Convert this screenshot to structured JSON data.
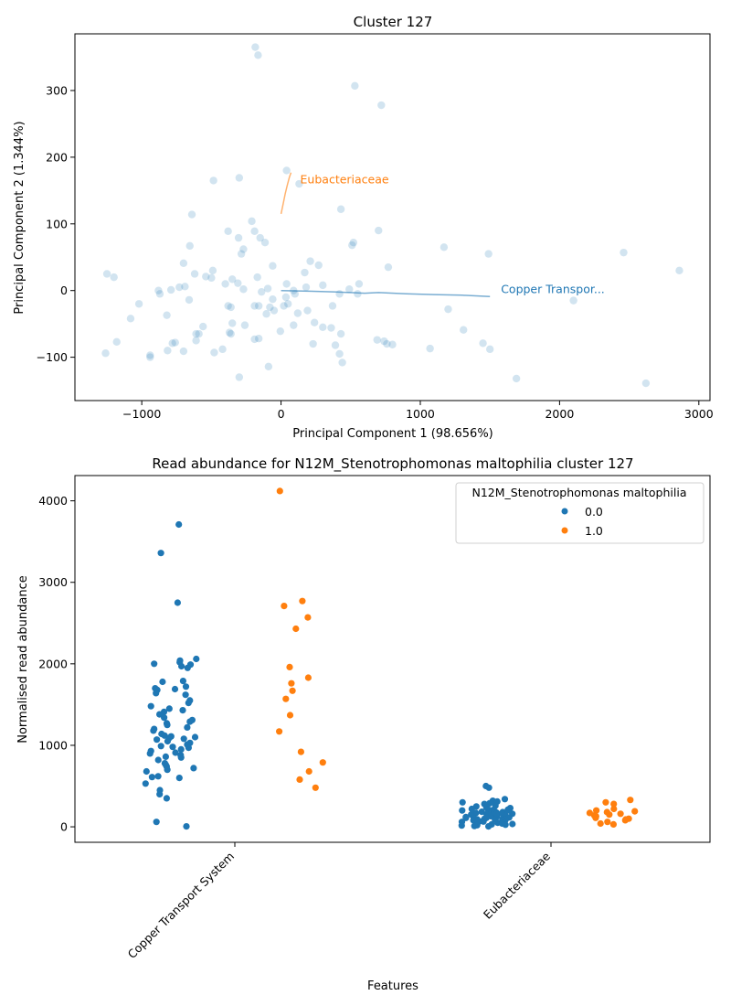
{
  "chart_data": [
    {
      "type": "scatter",
      "title": "Cluster 127",
      "xlabel": "Principal Component 1 (98.656%)",
      "ylabel": "Principal Component 2 (1.344%)",
      "xlim": [
        -1480,
        3080
      ],
      "ylim": [
        -165,
        385
      ],
      "xticks": [
        -1000,
        0,
        1000,
        2000,
        3000
      ],
      "yticks": [
        -100,
        0,
        100,
        200,
        300
      ],
      "point_color": "#1f77b4",
      "points": [
        [
          -185,
          365
        ],
        [
          -165,
          353
        ],
        [
          530,
          307
        ],
        [
          720,
          278
        ],
        [
          -485,
          165
        ],
        [
          -300,
          169
        ],
        [
          130,
          160
        ],
        [
          40,
          180
        ],
        [
          430,
          122
        ],
        [
          -640,
          114
        ],
        [
          -210,
          104
        ],
        [
          -270,
          62
        ],
        [
          -285,
          55
        ],
        [
          -380,
          89
        ],
        [
          -190,
          89
        ],
        [
          -305,
          79
        ],
        [
          -150,
          79
        ],
        [
          -115,
          72
        ],
        [
          -655,
          67
        ],
        [
          700,
          90
        ],
        [
          520,
          72
        ],
        [
          510,
          68
        ],
        [
          1170,
          65
        ],
        [
          2460,
          57
        ],
        [
          1490,
          55
        ],
        [
          -700,
          41
        ],
        [
          -730,
          5
        ],
        [
          -690,
          6
        ],
        [
          -490,
          30
        ],
        [
          -620,
          25
        ],
        [
          -540,
          21
        ],
        [
          -500,
          19
        ],
        [
          -60,
          37
        ],
        [
          210,
          44
        ],
        [
          270,
          38
        ],
        [
          770,
          35
        ],
        [
          -1250,
          25
        ],
        [
          -1200,
          20
        ],
        [
          -880,
          0
        ],
        [
          -870,
          -5
        ],
        [
          -790,
          1
        ],
        [
          -1020,
          -20
        ],
        [
          2860,
          30
        ],
        [
          -400,
          10
        ],
        [
          -350,
          17
        ],
        [
          -310,
          11
        ],
        [
          -270,
          2
        ],
        [
          -170,
          20
        ],
        [
          -140,
          -2
        ],
        [
          -95,
          3
        ],
        [
          40,
          10
        ],
        [
          90,
          0
        ],
        [
          180,
          5
        ],
        [
          170,
          27
        ],
        [
          300,
          8
        ],
        [
          420,
          -5
        ],
        [
          490,
          2
        ],
        [
          560,
          10
        ],
        [
          550,
          -5
        ],
        [
          100,
          -5
        ],
        [
          -300,
          -130
        ],
        [
          -380,
          -23
        ],
        [
          -360,
          -25
        ],
        [
          -160,
          -23
        ],
        [
          -190,
          -23
        ],
        [
          -60,
          -13
        ],
        [
          -50,
          -30
        ],
        [
          -80,
          -25
        ],
        [
          -105,
          -35
        ],
        [
          35,
          -10
        ],
        [
          50,
          -20
        ],
        [
          20,
          -23
        ],
        [
          120,
          -34
        ],
        [
          190,
          -30
        ],
        [
          370,
          -23
        ],
        [
          1200,
          -28
        ],
        [
          2100,
          -15
        ],
        [
          -820,
          -37
        ],
        [
          -660,
          -14
        ],
        [
          -1080,
          -42
        ],
        [
          -1180,
          -77
        ],
        [
          -1260,
          -94
        ],
        [
          -940,
          -97
        ],
        [
          -940,
          -100
        ],
        [
          -815,
          -90
        ],
        [
          -780,
          -79
        ],
        [
          -760,
          -78
        ],
        [
          -700,
          -91
        ],
        [
          -610,
          -65
        ],
        [
          -590,
          -65
        ],
        [
          -610,
          -75
        ],
        [
          -560,
          -54
        ],
        [
          -480,
          -93
        ],
        [
          -420,
          -88
        ],
        [
          -350,
          -49
        ],
        [
          -360,
          -65
        ],
        [
          -370,
          -63
        ],
        [
          -260,
          -52
        ],
        [
          -190,
          -73
        ],
        [
          -160,
          -72
        ],
        [
          -5,
          -61
        ],
        [
          90,
          -52
        ],
        [
          240,
          -48
        ],
        [
          300,
          -55
        ],
        [
          360,
          -56
        ],
        [
          230,
          -80
        ],
        [
          390,
          -82
        ],
        [
          420,
          -95
        ],
        [
          430,
          -65
        ],
        [
          440,
          -108
        ],
        [
          -90,
          -114
        ],
        [
          690,
          -74
        ],
        [
          740,
          -76
        ],
        [
          760,
          -80
        ],
        [
          800,
          -81
        ],
        [
          1070,
          -87
        ],
        [
          1310,
          -59
        ],
        [
          1450,
          -79
        ],
        [
          1500,
          -88
        ],
        [
          1690,
          -132
        ],
        [
          2620,
          -139
        ]
      ],
      "loadings": [
        {
          "label": "Eubacteriaceae",
          "color": "#ff7f0e",
          "path": [
            [
              0,
              115
            ],
            [
              15,
              130
            ],
            [
              30,
              145
            ],
            [
              45,
              158
            ],
            [
              60,
              170
            ],
            [
              72,
              177
            ]
          ]
        },
        {
          "label": "Copper Transpor...",
          "color": "#1f77b4",
          "path": [
            [
              0,
              0
            ],
            [
              200,
              -1
            ],
            [
              400,
              -2
            ],
            [
              600,
              -4
            ],
            [
              700,
              -3
            ],
            [
              900,
              -5
            ],
            [
              1100,
              -6
            ],
            [
              1300,
              -7
            ],
            [
              1500,
              -9
            ]
          ]
        }
      ]
    },
    {
      "type": "strip",
      "title": "Read abundance for N12M_Stenotrophomonas maltophilia cluster 127",
      "xlabel": "Features",
      "ylabel": "Normalised read abundance",
      "ylim": [
        -190,
        4310
      ],
      "yticks": [
        0,
        1000,
        2000,
        3000,
        4000
      ],
      "categories": [
        "Copper Transport System",
        "Eubacteriaceae"
      ],
      "legend_title": "N12M_Stenotrophomonas maltophilia",
      "series": [
        {
          "name": "0.0",
          "color": "#1f77b4",
          "values": [
            [
              3710,
              3360,
              2750,
              2060,
              2040,
              2020,
              2000,
              1990,
              1970,
              1950,
              1790,
              1780,
              1720,
              1700,
              1690,
              1680,
              1640,
              1620,
              1550,
              1520,
              1480,
              1450,
              1430,
              1410,
              1380,
              1340,
              1310,
              1290,
              1270,
              1250,
              1220,
              1200,
              1180,
              1140,
              1120,
              1110,
              1100,
              1090,
              1080,
              1070,
              1050,
              1030,
              1010,
              990,
              980,
              970,
              950,
              930,
              910,
              900,
              880,
              860,
              850,
              820,
              780,
              760,
              740,
              720,
              700,
              680,
              620,
              610,
              600,
              530,
              450,
              400,
              350,
              60,
              5
            ],
            [
              500,
              480,
              340,
              320,
              310,
              300,
              290,
              280,
              270,
              260,
              250,
              240,
              230,
              220,
              215,
              210,
              205,
              200,
              195,
              190,
              185,
              180,
              175,
              170,
              165,
              160,
              155,
              150,
              145,
              140,
              135,
              130,
              125,
              120,
              115,
              110,
              105,
              100,
              95,
              90,
              85,
              80,
              75,
              70,
              65,
              60,
              55,
              50,
              45,
              40,
              35,
              30,
              25,
              20,
              15,
              10,
              5,
              170,
              130,
              150,
              110,
              90,
              200,
              160
            ]
          ]
        },
        {
          "name": "1.0",
          "color": "#ff7f0e",
          "values": [
            [
              4120,
              2770,
              2710,
              2570,
              2430,
              1960,
              1830,
              1760,
              1670,
              1570,
              1370,
              1170,
              920,
              790,
              680,
              580,
              480
            ],
            [
              330,
              300,
              280,
              220,
              200,
              190,
              180,
              170,
              160,
              150,
              140,
              130,
              120,
              110,
              100,
              90,
              80,
              60,
              40,
              30
            ]
          ]
        }
      ]
    }
  ]
}
